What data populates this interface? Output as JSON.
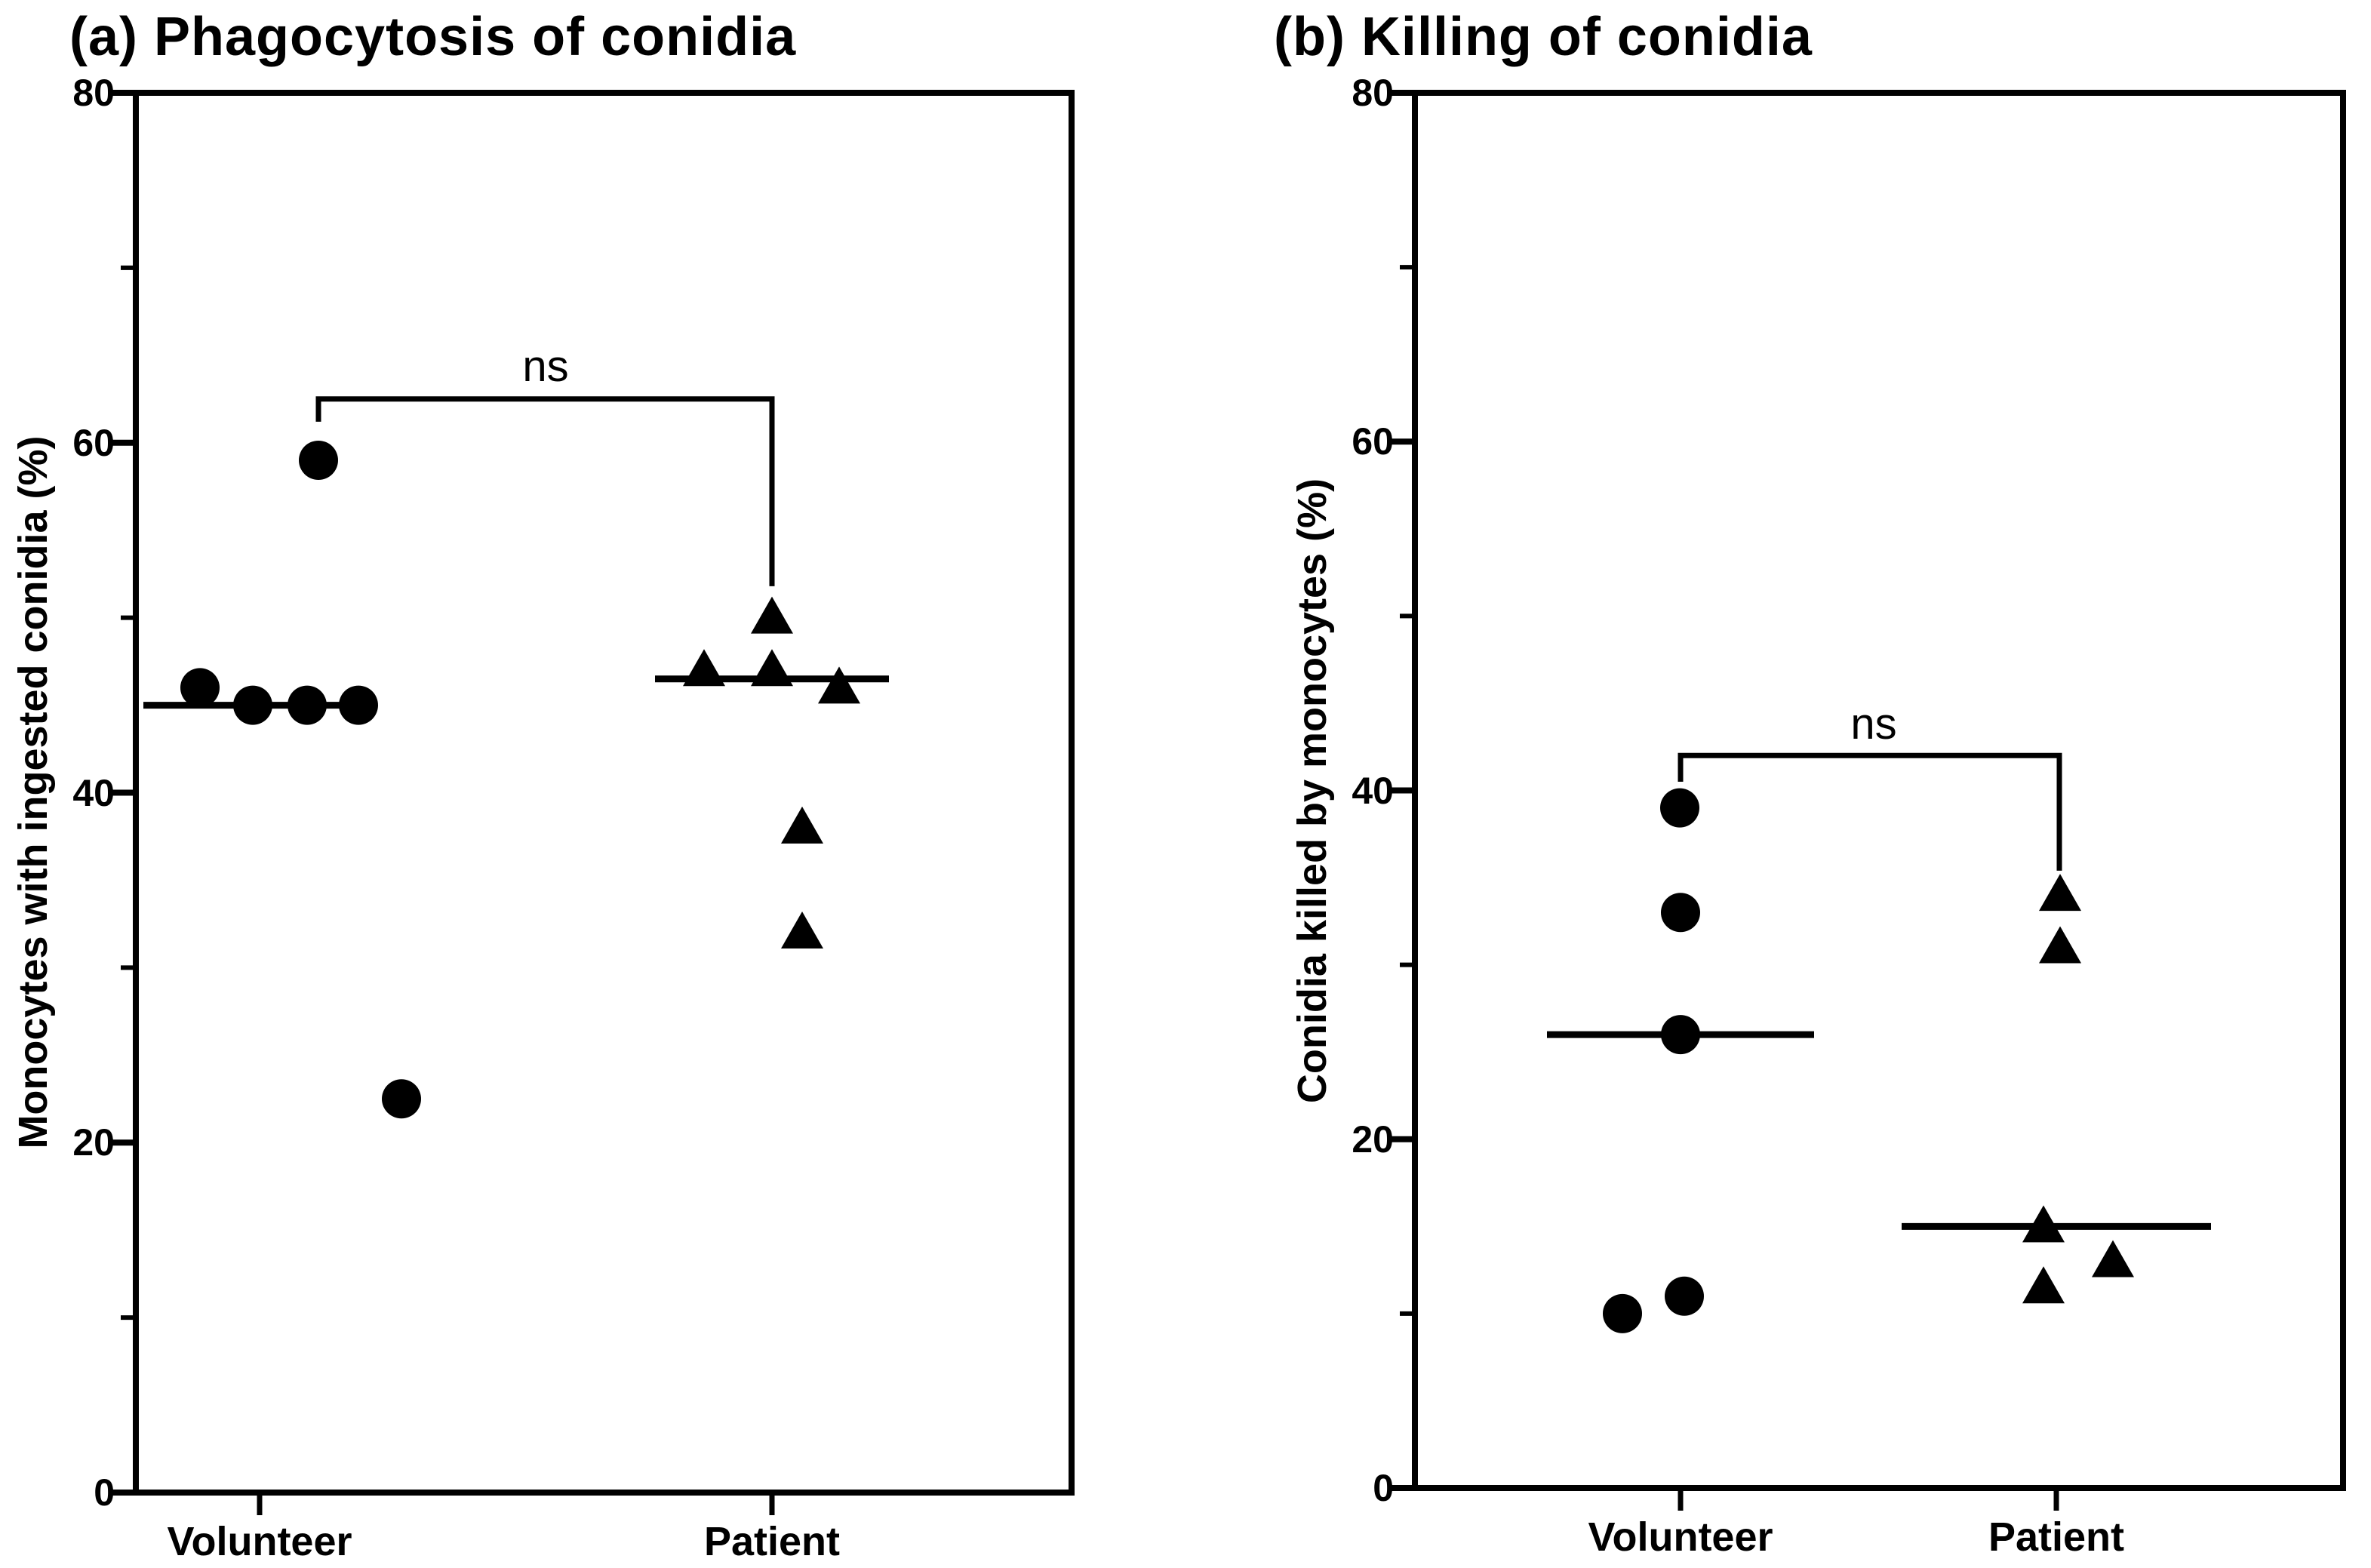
{
  "chart_data": [
    {
      "type": "scatter",
      "title": "(a) Phagocytosis of conidia",
      "xlabel": "",
      "ylabel": "Monocytes with ingested conidia (%)",
      "ylim": [
        0,
        80
      ],
      "yticks": [
        0,
        20,
        40,
        60,
        80
      ],
      "yminorticks": [
        10,
        30,
        50,
        70
      ],
      "categories": [
        "Volunteer",
        "Patient"
      ],
      "grid": false,
      "legend_position": "none",
      "marker_color": "#000000",
      "series": [
        {
          "category": "Volunteer",
          "marker": "circle",
          "points": [
            {
              "v": 46,
              "dx": -79
            },
            {
              "v": 45,
              "dx": -9
            },
            {
              "v": 45,
              "dx": 63
            },
            {
              "v": 45,
              "dx": 131
            },
            {
              "v": 59,
              "dx": 78
            },
            {
              "v": 22.5,
              "dx": 188
            }
          ],
          "median": 45,
          "median_halfwidth": 154
        },
        {
          "category": "Patient",
          "marker": "triangle",
          "points": [
            {
              "v": 47,
              "dx": -90
            },
            {
              "v": 47,
              "dx": 0
            },
            {
              "v": 46,
              "dx": 89
            },
            {
              "v": 50,
              "dx": 0
            },
            {
              "v": 38,
              "dx": 40
            },
            {
              "v": 32,
              "dx": 40
            }
          ],
          "median": 46.5,
          "median_halfwidth": 155
        }
      ],
      "significance": {
        "label": "ns",
        "bar_y": 62.5,
        "left_dx": 78,
        "left_drop_to": 61.2,
        "right_dx": 0,
        "right_drop_to": 51.8
      }
    },
    {
      "type": "scatter",
      "title": "(b) Killing of conidia",
      "xlabel": "",
      "ylabel": "Conidia killed by monocytes (%)",
      "ylim": [
        0,
        80
      ],
      "yticks": [
        0,
        20,
        40,
        60,
        80
      ],
      "yminorticks": [
        10,
        30,
        50,
        70
      ],
      "categories": [
        "Volunteer",
        "Patient"
      ],
      "grid": false,
      "legend_position": "none",
      "marker_color": "#000000",
      "series": [
        {
          "category": "Volunteer",
          "marker": "circle",
          "points": [
            {
              "v": 39,
              "dx": -1
            },
            {
              "v": 33,
              "dx": 0
            },
            {
              "v": 26,
              "dx": 0
            },
            {
              "v": 10,
              "dx": -77
            },
            {
              "v": 11,
              "dx": 5
            }
          ],
          "median": 26,
          "median_halfwidth": 177
        },
        {
          "category": "Patient",
          "marker": "triangle",
          "points": [
            {
              "v": 34,
              "dx": 5
            },
            {
              "v": 31,
              "dx": 5
            },
            {
              "v": 15,
              "dx": -17
            },
            {
              "v": 13,
              "dx": 75
            },
            {
              "v": 11.5,
              "dx": -17
            }
          ],
          "median": 15,
          "median_halfwidth": 205
        }
      ],
      "significance": {
        "label": "ns",
        "bar_y": 42,
        "left_dx": 0,
        "left_drop_to": 40.5,
        "right_dx": 4,
        "right_drop_to": 35.4
      }
    }
  ]
}
